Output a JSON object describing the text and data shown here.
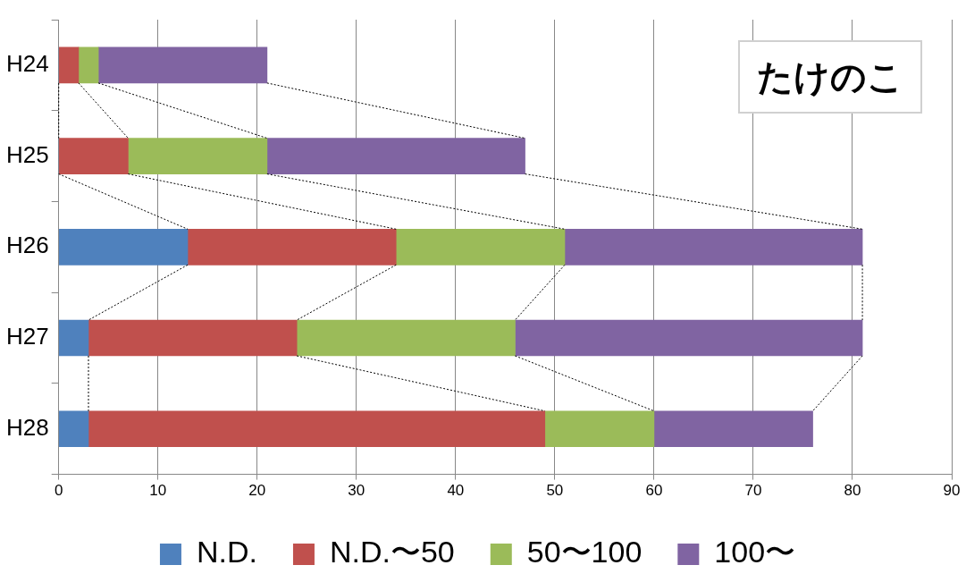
{
  "chart_data": {
    "type": "bar",
    "orientation": "horizontal",
    "stacked": true,
    "title": "たけのこ",
    "categories": [
      "H24",
      "H25",
      "H26",
      "H27",
      "H28"
    ],
    "series": [
      {
        "name": "N.D.",
        "color": "#4f81bd",
        "values": [
          0,
          0,
          13,
          3,
          3
        ]
      },
      {
        "name": "N.D.〜50",
        "color": "#c0504d",
        "values": [
          2,
          7,
          21,
          21,
          46
        ]
      },
      {
        "name": "50〜100",
        "color": "#9bbb59",
        "values": [
          2,
          14,
          17,
          22,
          11
        ]
      },
      {
        "name": "100〜",
        "color": "#8064a2",
        "values": [
          17,
          26,
          30,
          35,
          16
        ]
      }
    ],
    "xlim": [
      0,
      90
    ],
    "xticks": [
      0,
      10,
      20,
      30,
      40,
      50,
      60,
      70,
      80,
      90
    ],
    "grid": "x",
    "legend": "bottom"
  }
}
